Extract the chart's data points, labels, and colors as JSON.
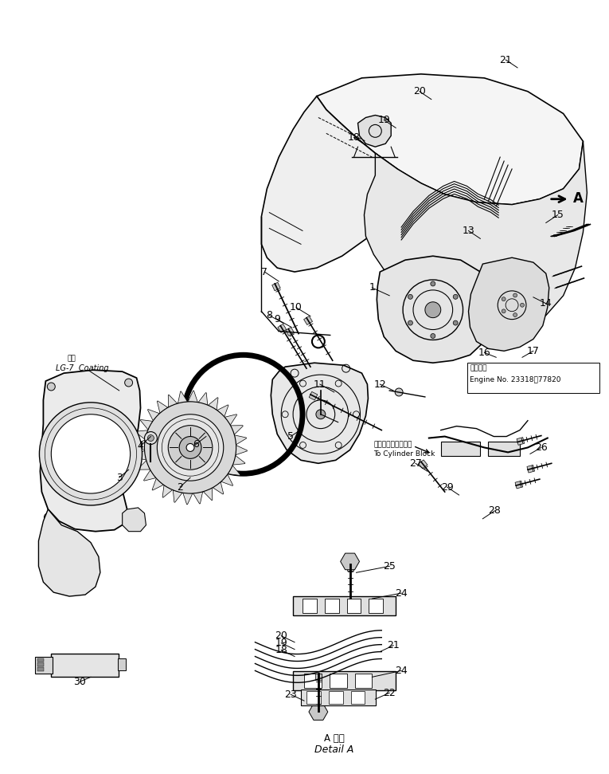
{
  "bg_color": "#ffffff",
  "line_color": "#000000",
  "fig_width": 7.65,
  "fig_height": 9.71,
  "dpi": 100,
  "annotations": {
    "engine_no_jp": "適用号等",
    "engine_no": "Engine No. 23318－77820",
    "to_cylinder_jp": "シリンダブロックへ",
    "to_cylinder_en": "To Cylinder Block",
    "lg7_jp": "塗布",
    "lg7_en": "LG-7  Coating",
    "detail_a_jp": "A 詳細",
    "detail_a_en": "Detail A"
  }
}
